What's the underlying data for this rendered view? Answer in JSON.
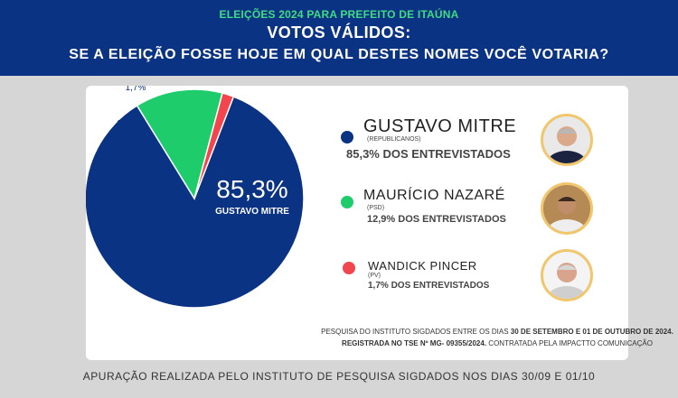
{
  "header": {
    "eyebrow": "ELEIÇÕES 2024 PARA PREFEITO DE ITAÚNA",
    "title": "VOTOS VÁLIDOS:",
    "subtitle": "SE A ELEIÇÃO FOSSE HOJE EM QUAL DESTES NOMES VOCÊ VOTARIA?"
  },
  "chart_data": {
    "type": "pie",
    "slices": [
      {
        "name": "GUSTAVO MITRE",
        "value": 85.3,
        "label": "85,3%",
        "color": "#0b3384"
      },
      {
        "name": "MAURÍCIO NAZARÉ",
        "value": 12.9,
        "label": "12,9%",
        "color": "#1fcc6b"
      },
      {
        "name": "WANDICK PINCER",
        "value": 1.7,
        "label": "1,7%",
        "color": "#f2454e"
      }
    ],
    "main_label": {
      "value": "85,3%",
      "name": "GUSTAVO MITRE"
    }
  },
  "legend": [
    {
      "name": "GUSTAVO MITRE",
      "party": "(REPUBLICANOS)",
      "pct_text": "85,3% DOS ENTREVISTADOS",
      "color": "#0b3384",
      "photo_icon": "portrait-icon"
    },
    {
      "name": "MAURÍCIO NAZARÉ",
      "party": "(PSD)",
      "pct_text": "12,9% DOS ENTREVISTADOS",
      "color": "#1fcc6b",
      "photo_icon": "portrait-icon"
    },
    {
      "name": "WANDICK PINCER",
      "party": "(PV)",
      "pct_text": "1,7% DOS ENTREVISTADOS",
      "color": "#f2454e",
      "photo_icon": "portrait-icon"
    }
  ],
  "note": {
    "line1_prefix": "PESQUISA DO INSTITUTO SIGDADOS ENTRE OS DIAS ",
    "line1_bold": "30 DE SETEMBRO E 01 DE OUTUBRO DE 2024.",
    "line2_bold": "REGISTRADA NO TSE Nº MG- 09355/2024.",
    "line2_suffix": " CONTRATADA PELA IMPACTTO COMUNICAÇÃO"
  },
  "footer": "APURAÇÃO REALIZADA PELO INSTITUTO DE PESQUISA SIGDADOS NOS DIAS 30/09  E 01/10"
}
